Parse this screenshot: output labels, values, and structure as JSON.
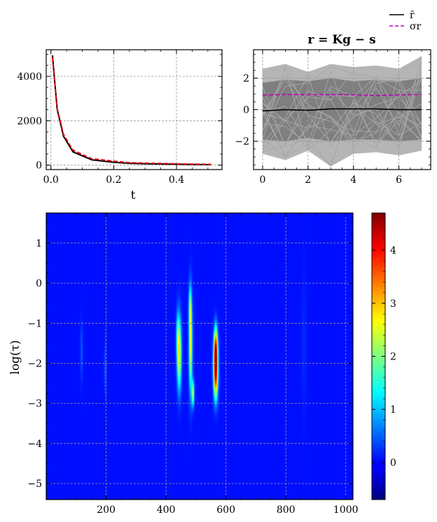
{
  "colors": {
    "mean_line": "#000000",
    "sigma_line": "#c000c0",
    "curve_black": "#000000",
    "curve_red": "#e8000b",
    "residual_traces": "#7f7f7f",
    "heatmap_background": "#0b1fff",
    "grid": "#999999"
  },
  "chart_data": [
    {
      "id": "decay",
      "type": "line",
      "title": "",
      "xlabel": "t",
      "ylabel": "",
      "xlim": [
        -0.015,
        0.545
      ],
      "ylim": [
        -200,
        5200
      ],
      "xticks": [
        0.0,
        0.2,
        0.4
      ],
      "xtick_labels": [
        "0.0",
        "0.2",
        "0.4"
      ],
      "yticks": [
        0,
        2000,
        4000
      ],
      "ytick_labels": [
        "0",
        "2000",
        "4000"
      ],
      "grid": true,
      "series": [
        {
          "x": [
            0.005,
            0.01,
            0.02,
            0.04,
            0.07,
            0.1,
            0.13,
            0.2,
            0.25,
            0.3,
            0.35,
            0.4,
            0.45,
            0.51
          ],
          "values": [
            4950,
            4100,
            2500,
            1300,
            600,
            420,
            240,
            130,
            80,
            60,
            50,
            40,
            30,
            20
          ],
          "color_key": "curve_black",
          "dash": "solid"
        },
        {
          "x": [
            0.005,
            0.01,
            0.02,
            0.04,
            0.07,
            0.1,
            0.13,
            0.2,
            0.25,
            0.3,
            0.35,
            0.4,
            0.45,
            0.51
          ],
          "values": [
            4850,
            4050,
            2550,
            1380,
            680,
            480,
            290,
            180,
            110,
            90,
            75,
            60,
            45,
            35
          ],
          "color_key": "curve_red",
          "dash": "dashed"
        }
      ]
    },
    {
      "id": "residuals",
      "type": "line",
      "title": "r = Kg − s",
      "xlabel": "",
      "ylabel": "",
      "xlim": [
        -0.4,
        7.4
      ],
      "ylim": [
        -3.8,
        3.8
      ],
      "xticks": [
        0,
        2,
        4,
        6
      ],
      "xtick_labels": [
        "0",
        "2",
        "4",
        "6"
      ],
      "yticks": [
        -2,
        0,
        2
      ],
      "ytick_labels": [
        "−2",
        "0",
        "2"
      ],
      "grid": true,
      "legend": {
        "placement": "above-top-right",
        "entries": [
          {
            "label": "r̄",
            "color_key": "mean_line",
            "dash": "solid"
          },
          {
            "label": "σr",
            "color_key": "sigma_line",
            "dash": "dashed"
          }
        ]
      },
      "trace_band": {
        "x": [
          0,
          1,
          2,
          3,
          4,
          5,
          6,
          7
        ],
        "upper": [
          2.6,
          2.9,
          2.4,
          2.9,
          2.7,
          2.8,
          2.6,
          3.4
        ],
        "lower": [
          -2.8,
          -3.2,
          -2.6,
          -3.6,
          -2.8,
          -2.7,
          -2.9,
          -2.6
        ],
        "inner_upper": [
          1.7,
          1.9,
          1.8,
          2.0,
          1.8,
          1.9,
          1.8,
          2.0
        ],
        "inner_lower": [
          -1.9,
          -2.0,
          -1.8,
          -2.0,
          -1.9,
          -1.9,
          -2.0,
          -1.9
        ]
      },
      "series": [
        {
          "name": "r̄",
          "x": [
            0,
            1,
            2,
            3,
            4,
            5,
            6,
            7
          ],
          "values": [
            -0.08,
            0.0,
            -0.04,
            0.05,
            0.05,
            0.05,
            0.0,
            0.0
          ],
          "color_key": "mean_line",
          "dash": "solid"
        },
        {
          "name": "σr",
          "x": [
            0,
            1,
            2,
            3,
            4,
            5,
            6,
            7
          ],
          "values": [
            0.92,
            0.97,
            0.95,
            0.95,
            0.94,
            0.9,
            0.93,
            0.97
          ],
          "color_key": "sigma_line",
          "dash": "dashed"
        }
      ]
    },
    {
      "id": "heatmap",
      "type": "heatmap",
      "title": "",
      "xlabel": "",
      "ylabel": "log(τ)",
      "xlim": [
        0,
        1024
      ],
      "ylim": [
        -5.4,
        1.75
      ],
      "xticks": [
        200,
        400,
        600,
        800,
        1000
      ],
      "xtick_labels": [
        "200",
        "400",
        "600",
        "800",
        "1000"
      ],
      "yticks": [
        1,
        0,
        -1,
        -2,
        -3,
        -4,
        -5
      ],
      "ytick_labels": [
        "1",
        "0",
        "−1",
        "−2",
        "−3",
        "−4",
        "−5"
      ],
      "grid": true,
      "colormap": "jet",
      "clim": [
        -0.7,
        4.7
      ],
      "background_value": 0.05,
      "colorbar": {
        "ticks": [
          0,
          1,
          2,
          3,
          4
        ],
        "tick_labels": [
          "0",
          "1",
          "2",
          "3",
          "4"
        ]
      },
      "blobs": [
        {
          "x": 118,
          "y": -1.7,
          "sx": 3,
          "sy": 0.5,
          "amp": 0.4
        },
        {
          "x": 197,
          "y": -2.1,
          "sx": 2.5,
          "sy": 0.5,
          "amp": 0.4
        },
        {
          "x": 444,
          "y": -1.75,
          "sx": 5,
          "sy": 0.6,
          "amp": 2.8
        },
        {
          "x": 438,
          "y": -1.3,
          "sx": 3,
          "sy": 0.4,
          "amp": 1.0
        },
        {
          "x": 482,
          "y": -1.5,
          "sx": 4,
          "sy": 0.8,
          "amp": 2.6
        },
        {
          "x": 480,
          "y": -0.6,
          "sx": 3,
          "sy": 0.35,
          "amp": 1.2
        },
        {
          "x": 490,
          "y": -2.75,
          "sx": 3,
          "sy": 0.22,
          "amp": 2.2
        },
        {
          "x": 566,
          "y": -1.9,
          "sx": 5,
          "sy": 0.38,
          "amp": 4.6
        },
        {
          "x": 566,
          "y": -2.5,
          "sx": 5,
          "sy": 0.35,
          "amp": 2.4
        },
        {
          "x": 566,
          "y": -1.4,
          "sx": 4,
          "sy": 0.3,
          "amp": 1.6
        },
        {
          "x": 860,
          "y": -1.5,
          "sx": 6,
          "sy": 1.2,
          "amp": 0.15
        }
      ]
    }
  ]
}
